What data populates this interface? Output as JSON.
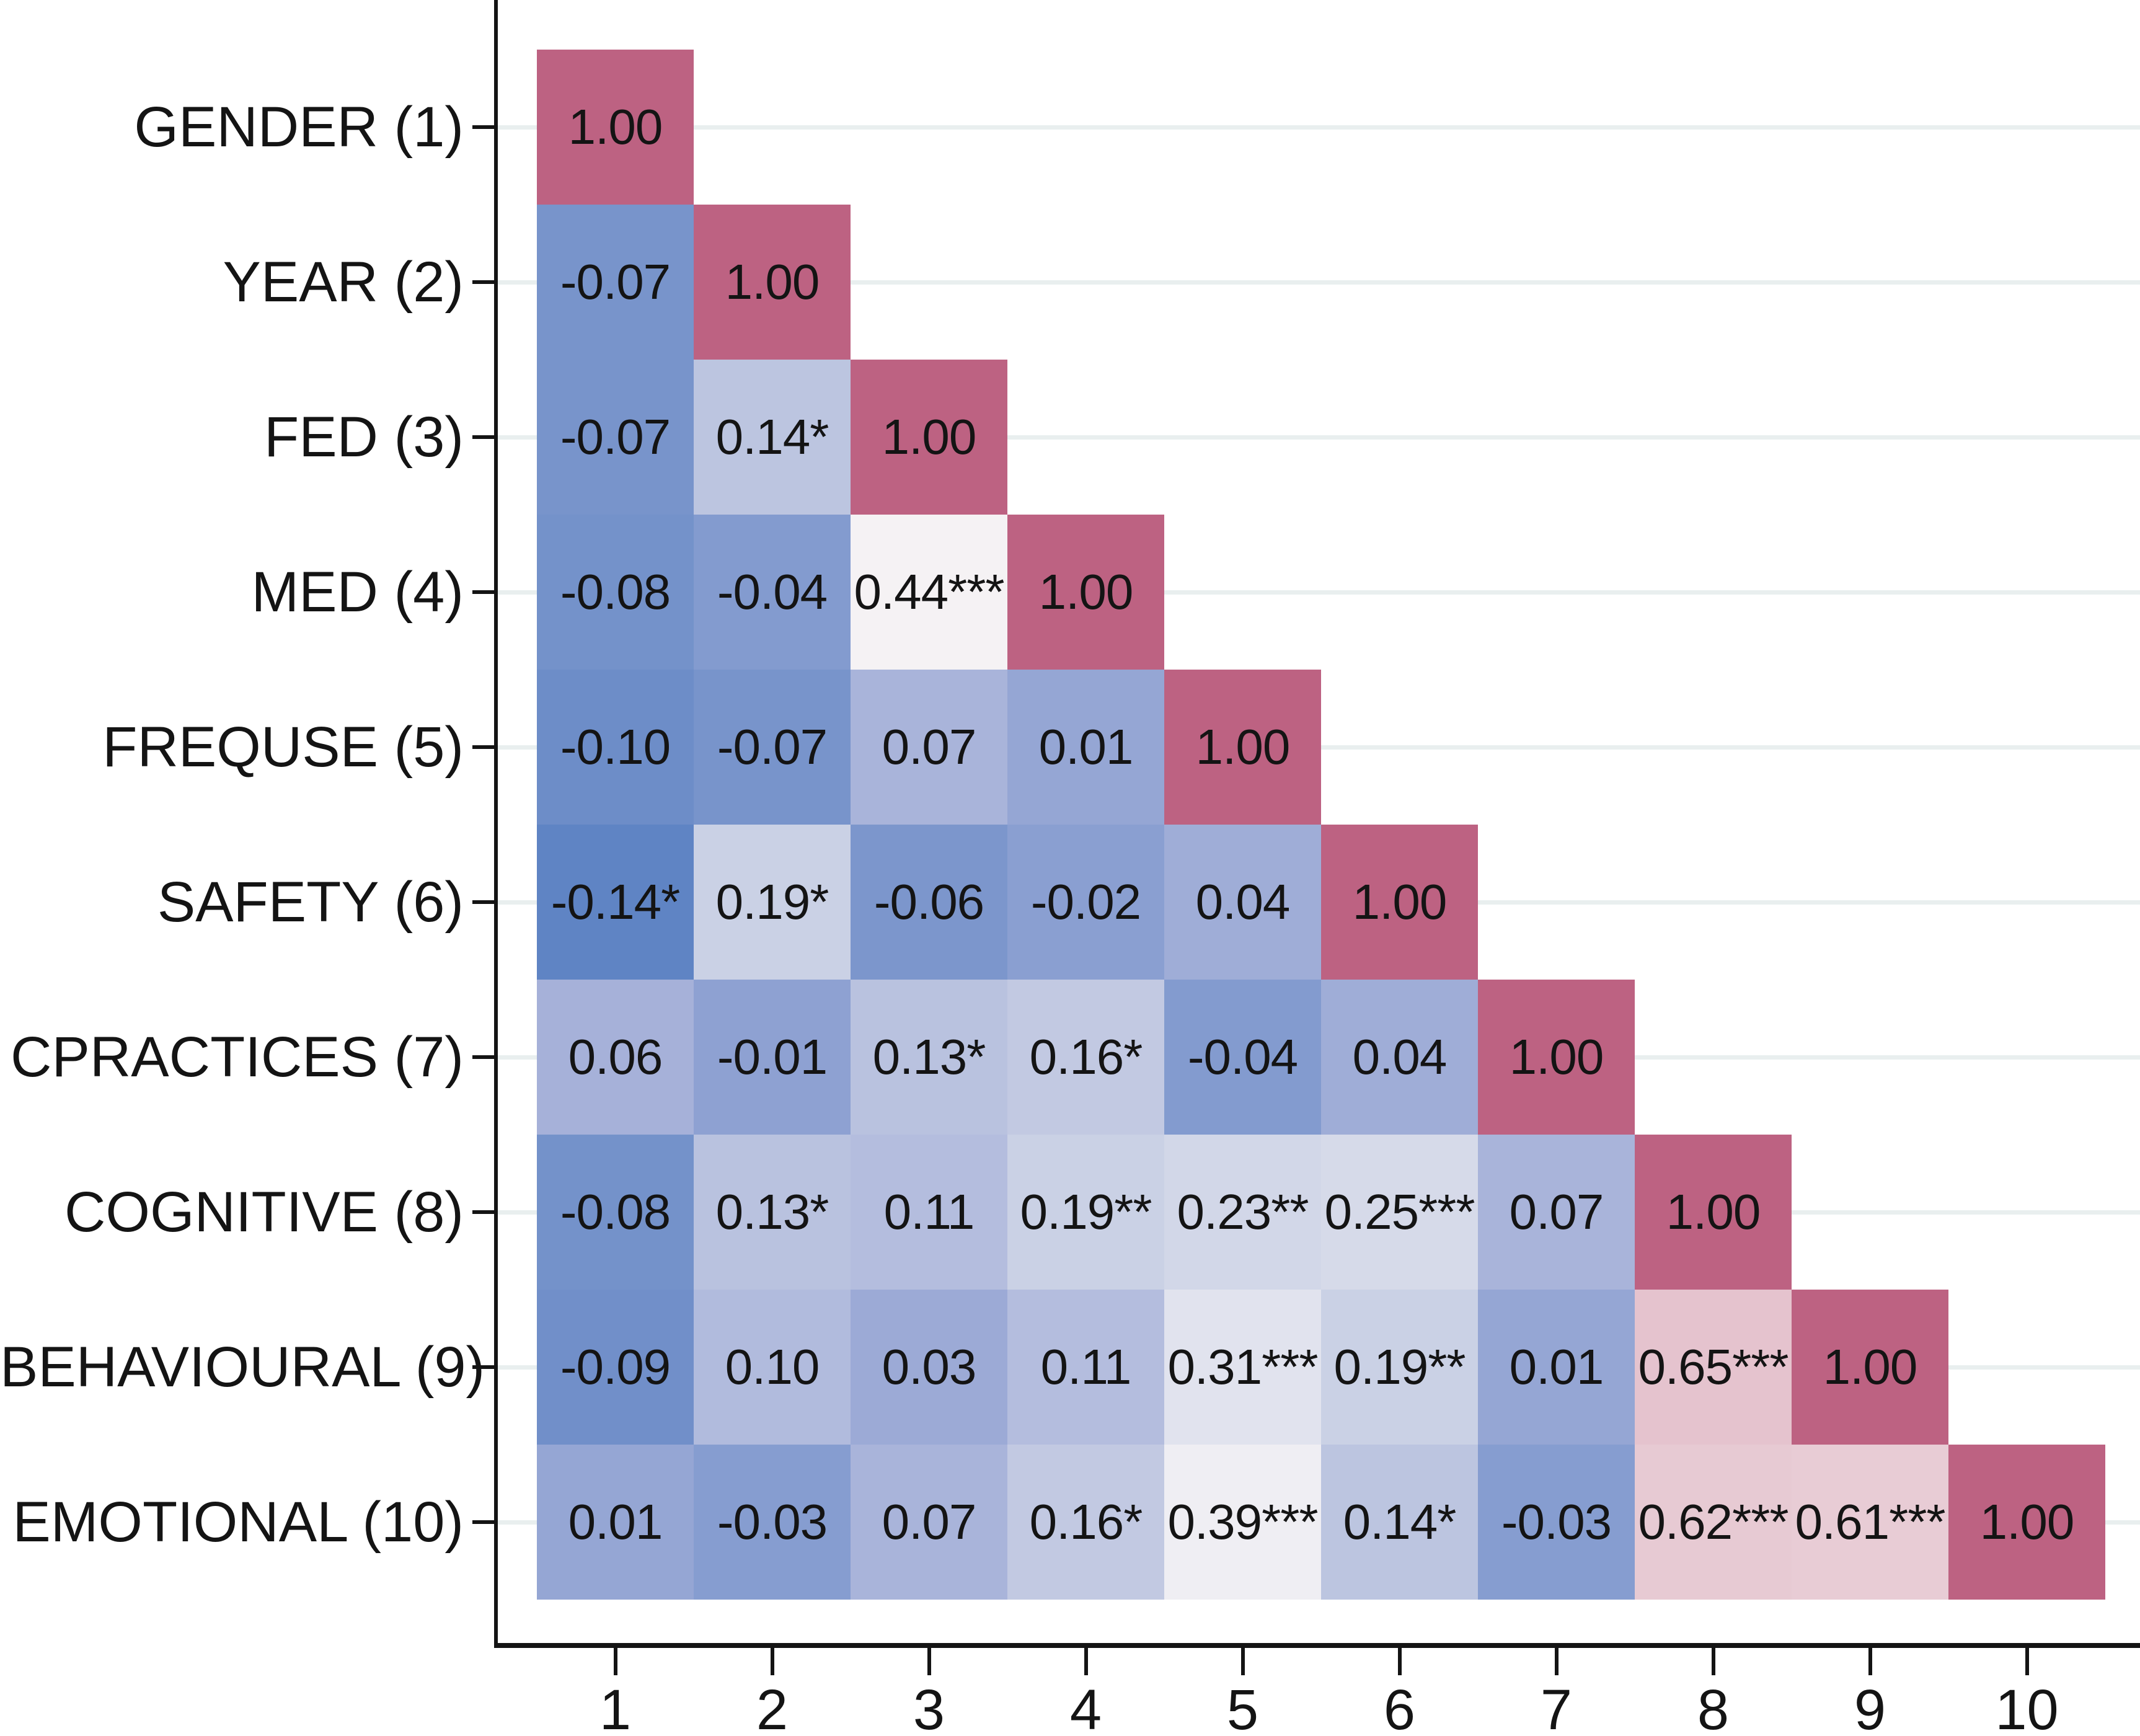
{
  "chart_data": {
    "type": "heatmap",
    "subtype": "lower-triangular-correlation-matrix",
    "title": "",
    "xlabel": "",
    "ylabel": "",
    "grid": true,
    "legend_position": "none",
    "value_range": [
      -0.14,
      1.0
    ],
    "x_ticklabels": [
      "1",
      "2",
      "3",
      "4",
      "5",
      "6",
      "7",
      "8",
      "9",
      "10"
    ],
    "variables": [
      "GENDER (1)",
      "YEAR (2)",
      "FED (3)",
      "MED (4)",
      "FREQUSE (5)",
      "SAFETY (6)",
      "CPRACTICES (7)",
      "COGNITIVE (8)",
      "BEHAVIOURAL (9)",
      "EMOTIONAL (10)"
    ],
    "rows": [
      {
        "label": "GENDER (1)",
        "cells": [
          "1.00"
        ]
      },
      {
        "label": "YEAR (2)",
        "cells": [
          "-0.07",
          "1.00"
        ]
      },
      {
        "label": "FED (3)",
        "cells": [
          "-0.07",
          "0.14*",
          "1.00"
        ]
      },
      {
        "label": "MED (4)",
        "cells": [
          "-0.08",
          "-0.04",
          "0.44***",
          "1.00"
        ]
      },
      {
        "label": "FREQUSE (5)",
        "cells": [
          "-0.10",
          "-0.07",
          "0.07",
          "0.01",
          "1.00"
        ]
      },
      {
        "label": "SAFETY (6)",
        "cells": [
          "-0.14*",
          "0.19*",
          "-0.06",
          "-0.02",
          "0.04",
          "1.00"
        ]
      },
      {
        "label": "CPRACTICES (7)",
        "cells": [
          "0.06",
          "-0.01",
          "0.13*",
          "0.16*",
          "-0.04",
          "0.04",
          "1.00"
        ]
      },
      {
        "label": "COGNITIVE (8)",
        "cells": [
          "-0.08",
          "0.13*",
          "0.11",
          "0.19**",
          "0.23**",
          "0.25***",
          "0.07",
          "1.00"
        ]
      },
      {
        "label": "BEHAVIOURAL (9)",
        "cells": [
          "-0.09",
          "0.10",
          "0.03",
          "0.11",
          "0.31***",
          "0.19**",
          "0.01",
          "0.65***",
          "1.00"
        ]
      },
      {
        "label": "EMOTIONAL (10)",
        "cells": [
          "0.01",
          "-0.03",
          "0.07",
          "0.16*",
          "0.39***",
          "0.14*",
          "-0.03",
          "0.62***",
          "0.61***",
          "1.00"
        ]
      }
    ],
    "colormap": {
      "stops": [
        {
          "v": -0.14,
          "color": "#5F84C4"
        },
        {
          "v": 0.05,
          "color": "#A3AFD8"
        },
        {
          "v": 0.2,
          "color": "#CDD3E6"
        },
        {
          "v": 0.43,
          "color": "#F6F4F6"
        },
        {
          "v": 0.65,
          "color": "#E5C3CE"
        },
        {
          "v": 1.0,
          "color": "#BD6282"
        }
      ]
    },
    "colors": {
      "axis": "#141414",
      "text": "#141414",
      "gridline": "#E9EFEF",
      "background": "#FFFFFF",
      "diagonal": "#BD6282"
    }
  }
}
